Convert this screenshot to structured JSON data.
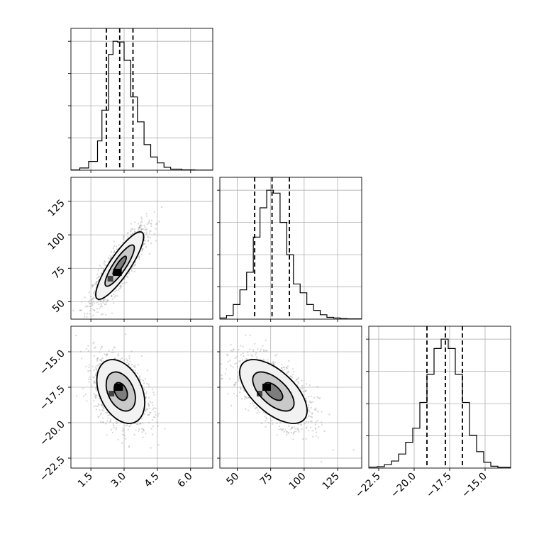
{
  "chart_data": {
    "type": "corner",
    "grid": true,
    "parameters": [
      {
        "range": [
          0.6,
          7.0
        ],
        "ticks": [
          1.5,
          3.0,
          4.5,
          6.0
        ],
        "tick_labels": [
          "1.5",
          "3.0",
          "4.5",
          "6.0"
        ],
        "quantiles": [
          2.2,
          2.8,
          3.4
        ],
        "hist_bins": [
          0.6,
          1.0,
          1.4,
          1.8,
          2.0,
          2.3,
          2.5,
          2.7,
          3.0,
          3.3,
          3.6,
          3.9,
          4.2,
          4.5,
          4.8,
          5.1,
          5.6,
          6.2,
          7.0
        ],
        "hist_counts": [
          0.4,
          3,
          12,
          40,
          82,
          158,
          176,
          175,
          150,
          100,
          66,
          35,
          18,
          10,
          4,
          1.5,
          0.5,
          0.2
        ]
      },
      {
        "range": [
          37,
          143
        ],
        "ticks": [
          50,
          75,
          100,
          125
        ],
        "tick_labels": [
          "50",
          "75",
          "100",
          "125"
        ],
        "quantiles": [
          63,
          76,
          89
        ],
        "hist_bins": [
          37,
          42,
          47,
          52,
          57,
          62,
          67,
          72,
          77,
          82,
          87,
          92,
          97,
          102,
          107,
          112,
          117,
          122,
          127,
          132,
          143
        ],
        "hist_counts": [
          0.4,
          1.3,
          5,
          10,
          16,
          28,
          38,
          44,
          43,
          33,
          22,
          12,
          9,
          5,
          3,
          1.5,
          0.6,
          0.4,
          0.2,
          0.1
        ]
      },
      {
        "range": [
          -23.2,
          -13.2
        ],
        "ticks": [
          -22.5,
          -20.0,
          -17.5,
          -15.0
        ],
        "tick_labels": [
          "−22.5",
          "−20.0",
          "−17.5",
          "−15.0"
        ],
        "quantiles": [
          -19.1,
          -17.8,
          -16.6
        ],
        "hist_bins": [
          -23.2,
          -22.6,
          -22.1,
          -21.6,
          -21.1,
          -20.6,
          -20.1,
          -19.6,
          -19.1,
          -18.6,
          -18.1,
          -17.6,
          -17.1,
          -16.6,
          -16.1,
          -15.6,
          -15.1,
          -14.6,
          -14.1,
          -13.2
        ],
        "hist_counts": [
          0.4,
          0.6,
          1.5,
          3,
          6,
          11,
          17,
          28,
          40,
          51,
          55,
          51,
          40,
          28,
          14,
          7,
          2.5,
          0.8,
          0.3
        ]
      }
    ],
    "pairs": [
      {
        "col": 0,
        "row": 1,
        "mean": [
          2.8,
          77
        ],
        "sd": [
          0.6,
          14
        ],
        "corr": 0.86,
        "levels": [
          0.5,
          1.1,
          1.8
        ],
        "mode": [
          2.7,
          72
        ]
      },
      {
        "col": 0,
        "row": 2,
        "mean": [
          2.85,
          -17.8
        ],
        "sd": [
          0.6,
          1.25
        ],
        "corr": -0.35,
        "levels": [
          0.5,
          1.1,
          1.8
        ],
        "mode": [
          2.75,
          -17.5
        ]
      },
      {
        "col": 1,
        "row": 2,
        "mean": [
          77,
          -17.8
        ],
        "sd": [
          14,
          1.25
        ],
        "corr": -0.6,
        "levels": [
          0.5,
          1.1,
          1.8
        ],
        "mode": [
          72,
          -17.5
        ]
      }
    ]
  }
}
